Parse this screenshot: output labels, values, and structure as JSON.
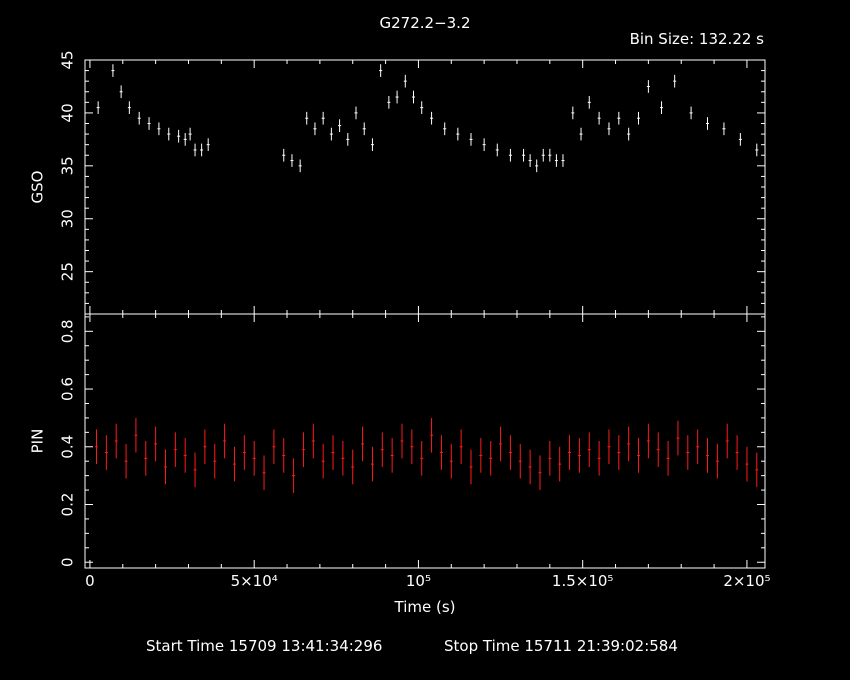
{
  "title": "G272.2−3.2",
  "bin_size": "Bin Size: 132.22 s",
  "footer": {
    "start": "Start Time 15709 13:41:34:296",
    "stop": "Stop Time 15711 21:39:02:584"
  },
  "colors": {
    "gso": "#ffffff",
    "pin": "#ff1a1a",
    "axes": "#ffffff",
    "background": "#000000"
  },
  "chart_data": [
    {
      "type": "scatter",
      "panel": "top",
      "ylabel": "GSO",
      "xlim": [
        -1500,
        205500
      ],
      "ylim": [
        21,
        45
      ],
      "yticks": [
        25,
        30,
        35,
        40,
        45
      ],
      "series": [
        {
          "x": [
            2500,
            7000,
            9500,
            12000,
            15000,
            18000,
            21000,
            24000,
            27000,
            29000,
            30500,
            32000,
            34000,
            36000,
            59000,
            61500,
            64000,
            66000,
            68500,
            71000,
            73500,
            76000,
            78500,
            81000,
            83500,
            86000,
            88500,
            91000,
            93500,
            96000,
            98500,
            101000,
            104000,
            108000,
            112000,
            116000,
            120000,
            124000,
            128000,
            132000,
            134000,
            136000,
            138000,
            140000,
            142000,
            144000,
            147000,
            149500,
            152000,
            155000,
            158000,
            161000,
            164000,
            167000,
            170000,
            174000,
            178000,
            183000,
            188000,
            193000,
            198000,
            203000
          ],
          "y": [
            40.5,
            44,
            42,
            40.5,
            39.5,
            39,
            38.5,
            38,
            37.8,
            37.5,
            38,
            36.5,
            36.5,
            37,
            36,
            35.5,
            35,
            39.5,
            38.5,
            39.5,
            38,
            38.8,
            37.5,
            40,
            38.5,
            37,
            44,
            41,
            41.5,
            43,
            41.5,
            40.5,
            39.5,
            38.5,
            38,
            37.5,
            37,
            36.5,
            36,
            36,
            35.5,
            35,
            36,
            36,
            35.5,
            35.5,
            40,
            38,
            41,
            39.5,
            38.5,
            39.5,
            38,
            39.5,
            42.5,
            40.5,
            43,
            40,
            39,
            38.5,
            37.5,
            36.5
          ]
        }
      ]
    },
    {
      "type": "scatter",
      "panel": "bottom",
      "ylabel": "PIN",
      "xlabel": "Time (s)",
      "xlim": [
        -1500,
        205500
      ],
      "ylim": [
        -0.02,
        0.86
      ],
      "yticks": [
        0,
        0.2,
        0.4,
        0.6,
        0.8
      ],
      "xticks": [
        {
          "value": 0,
          "label": "0"
        },
        {
          "value": 50000,
          "label": "5×10⁴"
        },
        {
          "value": 100000,
          "label": "10⁵"
        },
        {
          "value": 150000,
          "label": "1.5×10⁵"
        },
        {
          "value": 200000,
          "label": "2×10⁵"
        }
      ],
      "series": [
        {
          "x": [
            2000,
            5000,
            8000,
            11000,
            14000,
            17000,
            20000,
            23000,
            26000,
            29000,
            32000,
            35000,
            38000,
            41000,
            44000,
            47000,
            50000,
            53000,
            56000,
            59000,
            62000,
            65000,
            68000,
            71000,
            74000,
            77000,
            80000,
            83000,
            86000,
            89000,
            92000,
            95000,
            98000,
            101000,
            104000,
            107000,
            110000,
            113000,
            116000,
            119000,
            122000,
            125000,
            128000,
            131000,
            134000,
            137000,
            140000,
            143000,
            146000,
            149000,
            152000,
            155000,
            158000,
            161000,
            164000,
            167000,
            170000,
            173000,
            176000,
            179000,
            182000,
            185000,
            188000,
            191000,
            194000,
            197000,
            200000,
            203000
          ],
          "y": [
            0.4,
            0.38,
            0.42,
            0.35,
            0.44,
            0.36,
            0.41,
            0.33,
            0.39,
            0.37,
            0.32,
            0.4,
            0.35,
            0.42,
            0.34,
            0.38,
            0.36,
            0.31,
            0.4,
            0.37,
            0.3,
            0.39,
            0.42,
            0.35,
            0.38,
            0.36,
            0.33,
            0.41,
            0.34,
            0.39,
            0.37,
            0.42,
            0.4,
            0.36,
            0.44,
            0.38,
            0.35,
            0.4,
            0.33,
            0.37,
            0.36,
            0.41,
            0.38,
            0.35,
            0.33,
            0.31,
            0.36,
            0.34,
            0.38,
            0.37,
            0.39,
            0.36,
            0.4,
            0.38,
            0.41,
            0.37,
            0.42,
            0.39,
            0.36,
            0.43,
            0.38,
            0.4,
            0.37,
            0.35,
            0.42,
            0.38,
            0.34,
            0.32
          ]
        }
      ]
    }
  ]
}
